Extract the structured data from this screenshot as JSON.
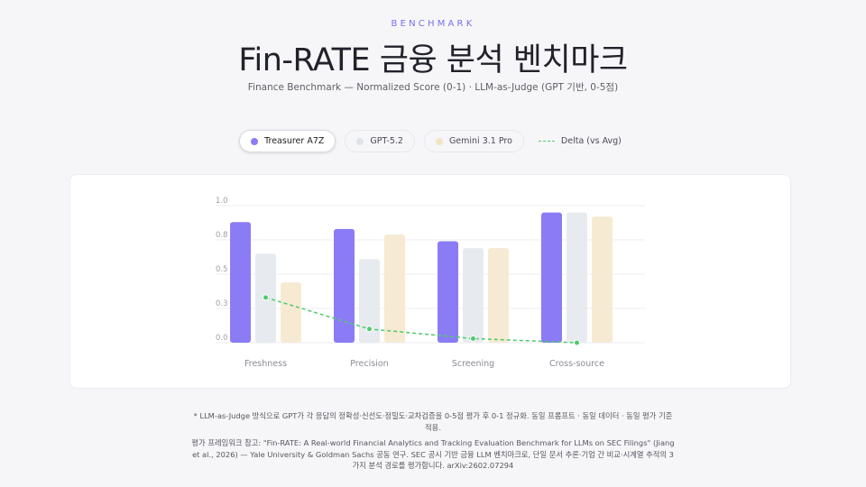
{
  "header": {
    "eyebrow": "BENCHMARK",
    "title": "Fin-RATE 금융 분석 벤치마크",
    "subtitle": "Finance Benchmark — Normalized Score (0-1) · LLM-as-Judge (GPT 기반, 0-5점)"
  },
  "legend": {
    "items": [
      {
        "label": "Treasurer A7Z",
        "color": "#8b7cf6",
        "active": true
      },
      {
        "label": "GPT-5.2",
        "color": "#dfe3e8",
        "active": false
      },
      {
        "label": "Gemini 3.1 Pro",
        "color": "#f3e4c6",
        "active": false
      }
    ],
    "delta_label": "Delta (vs Avg)",
    "delta_color": "#4fca6d"
  },
  "chart_data": {
    "type": "bar",
    "categories": [
      "Freshness",
      "Precision",
      "Screening",
      "Cross-source"
    ],
    "series": [
      {
        "name": "Treasurer A7Z",
        "values": [
          0.88,
          0.83,
          0.74,
          0.95
        ],
        "color": "#8b7cf6"
      },
      {
        "name": "GPT-5.2",
        "values": [
          0.65,
          0.61,
          0.69,
          0.95
        ],
        "color": "#e7ebef"
      },
      {
        "name": "Gemini 3.1 Pro",
        "values": [
          0.44,
          0.79,
          0.69,
          0.92
        ],
        "color": "#f6ead3"
      }
    ],
    "delta": {
      "name": "Delta (vs Avg)",
      "values": [
        0.33,
        0.1,
        0.03,
        0.0
      ],
      "color": "#4fca6d"
    },
    "yticks": [
      "0.0",
      "0.3",
      "0.5",
      "0.8",
      "1.0"
    ],
    "ylim": [
      0,
      1
    ],
    "grid": true
  },
  "notes": {
    "note1": "* LLM-as-Judge 방식으로 GPT가 각 응답의 정확성·신선도·정밀도·교차검증을 0-5점 평가 후 0-1 정규화. 동일 프롬프트 · 동일 데이터 · 동일 평가 기준 적용.",
    "note2": "평가 프레임워크 참고: \"Fin-RATE: A Real-world Financial Analytics and Tracking Evaluation Benchmark for LLMs on SEC Filings\" (Jiang et al., 2026) — Yale University & Goldman Sachs 공동 연구. SEC 공시 기반 금융 LLM 벤치마크로, 단일 문서 추론·기업 간 비교·시계열 추적의 3가지 분석 경로를 평가합니다. arXiv:2602.07294"
  }
}
